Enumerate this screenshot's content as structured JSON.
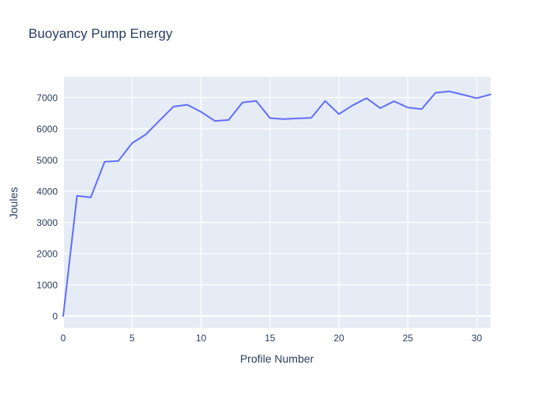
{
  "figure": {
    "title": "Buoyancy Pump Energy"
  },
  "chart_data": {
    "type": "line",
    "title": "Buoyancy Pump Energy",
    "xlabel": "Profile Number",
    "ylabel": "Joules",
    "x": [
      0,
      1,
      2,
      3,
      4,
      5,
      6,
      7,
      8,
      9,
      10,
      11,
      12,
      13,
      14,
      15,
      16,
      17,
      18,
      19,
      20,
      21,
      22,
      23,
      24,
      25,
      26,
      27,
      28,
      29,
      30,
      31
    ],
    "values": [
      0,
      3850,
      3800,
      4940,
      4970,
      5540,
      5820,
      6270,
      6710,
      6770,
      6540,
      6250,
      6280,
      6840,
      6890,
      6340,
      6310,
      6330,
      6350,
      6890,
      6470,
      6750,
      6980,
      6660,
      6880,
      6680,
      6630,
      7150,
      7200,
      7090,
      6980,
      7100
    ],
    "xticks": [
      0,
      5,
      10,
      15,
      20,
      25,
      30
    ],
    "yticks": [
      0,
      1000,
      2000,
      3000,
      4000,
      5000,
      6000,
      7000
    ],
    "xlim": [
      0,
      31
    ],
    "ylim": [
      -380,
      7670
    ],
    "grid": true,
    "legend_visible": false,
    "colors": {
      "line": "#636efa",
      "plot_bg": "#e5ecf6",
      "grid": "#ffffff",
      "zeroline": "#ffffff",
      "text": "#2a3f5f",
      "paper_bg": "#ffffff"
    }
  }
}
